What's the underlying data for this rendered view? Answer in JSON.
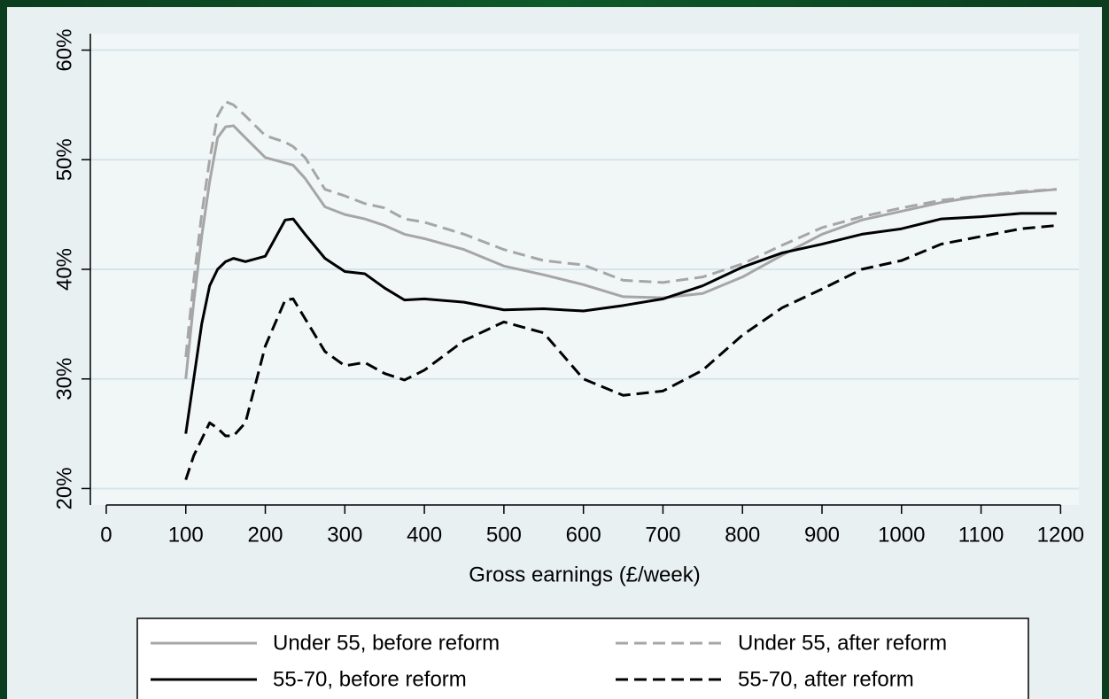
{
  "chart_data": {
    "type": "line",
    "xlabel": "Gross earnings (£/week)",
    "x": [
      100,
      110,
      120,
      130,
      140,
      150,
      160,
      175,
      200,
      225,
      235,
      250,
      275,
      300,
      325,
      350,
      375,
      400,
      450,
      500,
      550,
      600,
      650,
      700,
      750,
      800,
      850,
      900,
      950,
      1000,
      1050,
      1100,
      1150,
      1195
    ],
    "series": [
      {
        "name": "Under 55, before reform",
        "color": "#a6a6a6",
        "style": "solid",
        "values": [
          30,
          37,
          43,
          48,
          52,
          53,
          53.1,
          52,
          50.2,
          49.7,
          49.5,
          48.3,
          45.7,
          45,
          44.6,
          44,
          43.2,
          42.8,
          41.8,
          40.3,
          39.5,
          38.6,
          37.5,
          37.4,
          37.8,
          39.3,
          41.3,
          43.2,
          44.5,
          45.3,
          46.1,
          46.7,
          47,
          47.3
        ]
      },
      {
        "name": "Under 55, after reform",
        "color": "#a6a6a6",
        "style": "dashed",
        "values": [
          32,
          39,
          45,
          50,
          54,
          55.3,
          55,
          54,
          52.2,
          51.6,
          51.2,
          50.2,
          47.3,
          46.7,
          46,
          45.6,
          44.6,
          44.3,
          43.2,
          41.8,
          40.8,
          40.4,
          39,
          38.8,
          39.3,
          40.5,
          42.2,
          43.8,
          44.8,
          45.6,
          46.3,
          46.7,
          47.1,
          47.3
        ]
      },
      {
        "name": "55-70, before reform",
        "color": "#000000",
        "style": "solid",
        "values": [
          25,
          30,
          35,
          38.5,
          40,
          40.7,
          41,
          40.7,
          41.2,
          44.5,
          44.6,
          43.2,
          41,
          39.8,
          39.6,
          38.3,
          37.2,
          37.3,
          37,
          36.3,
          36.4,
          36.2,
          36.7,
          37.3,
          38.5,
          40.2,
          41.5,
          42.3,
          43.2,
          43.7,
          44.6,
          44.8,
          45.1,
          45.1
        ]
      },
      {
        "name": "55-70, after reform",
        "color": "#000000",
        "style": "dashed",
        "values": [
          20.8,
          23,
          24.5,
          26,
          25.5,
          24.8,
          24.8,
          26,
          33,
          37.2,
          37.3,
          35.5,
          32.5,
          31.2,
          31.5,
          30.5,
          29.9,
          30.8,
          33.5,
          35.2,
          34.2,
          30,
          28.5,
          28.9,
          30.8,
          34,
          36.5,
          38.2,
          40,
          40.8,
          42.3,
          43,
          43.7,
          44
        ]
      }
    ],
    "xlim": [
      -20,
      1223
    ],
    "xticks": [
      0,
      100,
      200,
      300,
      400,
      500,
      600,
      700,
      800,
      900,
      1000,
      1100,
      1200
    ],
    "ylim": [
      18.5,
      61.5
    ],
    "yticks": [
      {
        "value": 20,
        "label": "20%"
      },
      {
        "value": 30,
        "label": "30%"
      },
      {
        "value": 40,
        "label": "40%"
      },
      {
        "value": 50,
        "label": "50%"
      },
      {
        "value": 60,
        "label": "60%"
      }
    ],
    "grid": true,
    "legend": "bottom"
  }
}
